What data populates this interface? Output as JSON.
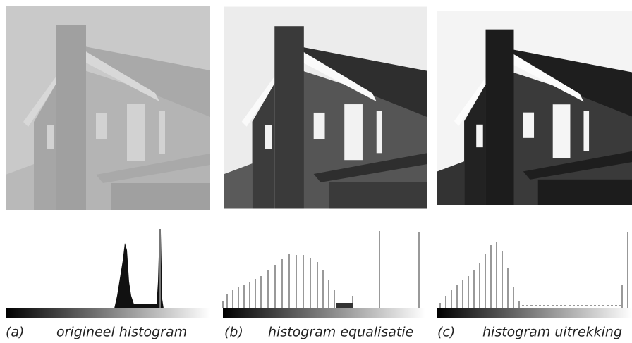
{
  "panels": [
    {
      "letter": "(a)",
      "caption": "origineel histogram"
    },
    {
      "letter": "(b)",
      "caption": "histogram equalisatie"
    },
    {
      "letter": "(c)",
      "caption": "histogram uitrekking"
    }
  ]
}
